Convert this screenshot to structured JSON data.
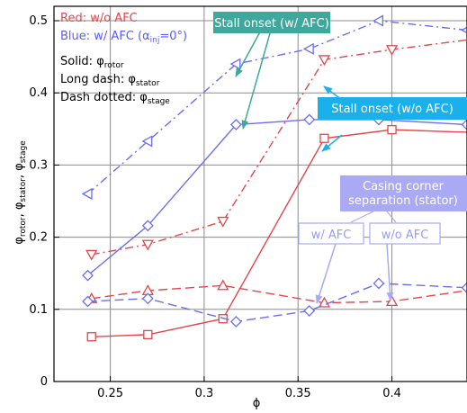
{
  "chart_data": {
    "type": "line",
    "xlabel": "ϕ",
    "ylabel": "φrotor, φstator, φstage",
    "xlim": [
      0.22,
      0.44
    ],
    "ylim": [
      0,
      0.52
    ],
    "xticks": [
      0.25,
      0.3,
      0.35,
      0.4
    ],
    "xtick_labels": [
      "0.25",
      "0.3",
      "0.35",
      "0.4"
    ],
    "yticks": [
      0,
      0.1,
      0.2,
      0.3,
      0.4,
      0.5
    ],
    "ytick_labels": [
      "0",
      "0.1",
      "0.2",
      "0.3",
      "0.4",
      "0.5"
    ],
    "grid": true,
    "colors": {
      "red": "#e0474c",
      "blue": "#6b6ef0",
      "teal": "#3fa89c",
      "cyan": "#1ab0ec",
      "lavender": "#a9a9f4"
    },
    "series": [
      {
        "color": "red",
        "style": "solid",
        "marker": "square",
        "quantity": "rotor",
        "case": "w/o AFC",
        "x": [
          0.24,
          0.27,
          0.31,
          0.364,
          0.4,
          0.445
        ],
        "y": [
          0.062,
          0.065,
          0.087,
          0.337,
          0.349,
          0.345
        ]
      },
      {
        "color": "red",
        "style": "longdash",
        "marker": "triangle-up",
        "quantity": "stator",
        "case": "w/o AFC",
        "x": [
          0.24,
          0.27,
          0.31,
          0.364,
          0.4,
          0.445
        ],
        "y": [
          0.115,
          0.126,
          0.133,
          0.109,
          0.111,
          0.128
        ]
      },
      {
        "color": "red",
        "style": "dashdot",
        "marker": "triangle-down",
        "quantity": "stage",
        "case": "w/o AFC",
        "x": [
          0.24,
          0.27,
          0.31,
          0.364,
          0.4,
          0.445
        ],
        "y": [
          0.176,
          0.19,
          0.222,
          0.446,
          0.46,
          0.475
        ]
      },
      {
        "color": "blue",
        "style": "solid",
        "marker": "diamond",
        "quantity": "rotor",
        "case": "w/ AFC",
        "x": [
          0.238,
          0.27,
          0.317,
          0.356,
          0.393,
          0.44
        ],
        "y": [
          0.147,
          0.216,
          0.356,
          0.363,
          0.363,
          0.356
        ]
      },
      {
        "color": "blue",
        "style": "longdash",
        "marker": "diamond",
        "quantity": "stator",
        "case": "w/ AFC",
        "x": [
          0.238,
          0.27,
          0.317,
          0.356,
          0.393,
          0.44
        ],
        "y": [
          0.111,
          0.115,
          0.083,
          0.098,
          0.136,
          0.13
        ]
      },
      {
        "color": "blue",
        "style": "dashdot",
        "marker": "triangle-left",
        "quantity": "stage",
        "case": "w/ AFC",
        "x": [
          0.238,
          0.27,
          0.317,
          0.356,
          0.393,
          0.44
        ],
        "y": [
          0.26,
          0.333,
          0.44,
          0.461,
          0.5,
          0.487
        ]
      }
    ]
  },
  "legend": {
    "red_line": "Red: w/o AFC",
    "blue_prefix": "Blue: w/ AFC (α",
    "blue_sub": "inj",
    "blue_suffix": "=0°)",
    "solid_prefix": "Solid: φ",
    "solid_sub": "rotor",
    "longdash_prefix": "Long dash: φ",
    "longdash_sub": "stator",
    "dashdot_prefix": "Dash dotted: φ",
    "dashdot_sub": "stage"
  },
  "axis_label_y": {
    "p1": "φ",
    "s1": "rotor",
    "c1": ", φ",
    "s2": "stator",
    "c2": ", φ",
    "s3": "stage"
  },
  "annotations": {
    "stall_afc": "Stall onset (w/ AFC)",
    "stall_noafc": "Stall onset (w/o AFC)",
    "casing_line1": "Casing corner",
    "casing_line2": "separation (stator)",
    "w_afc": "w/ AFC",
    "wo_afc": "w/o AFC"
  }
}
